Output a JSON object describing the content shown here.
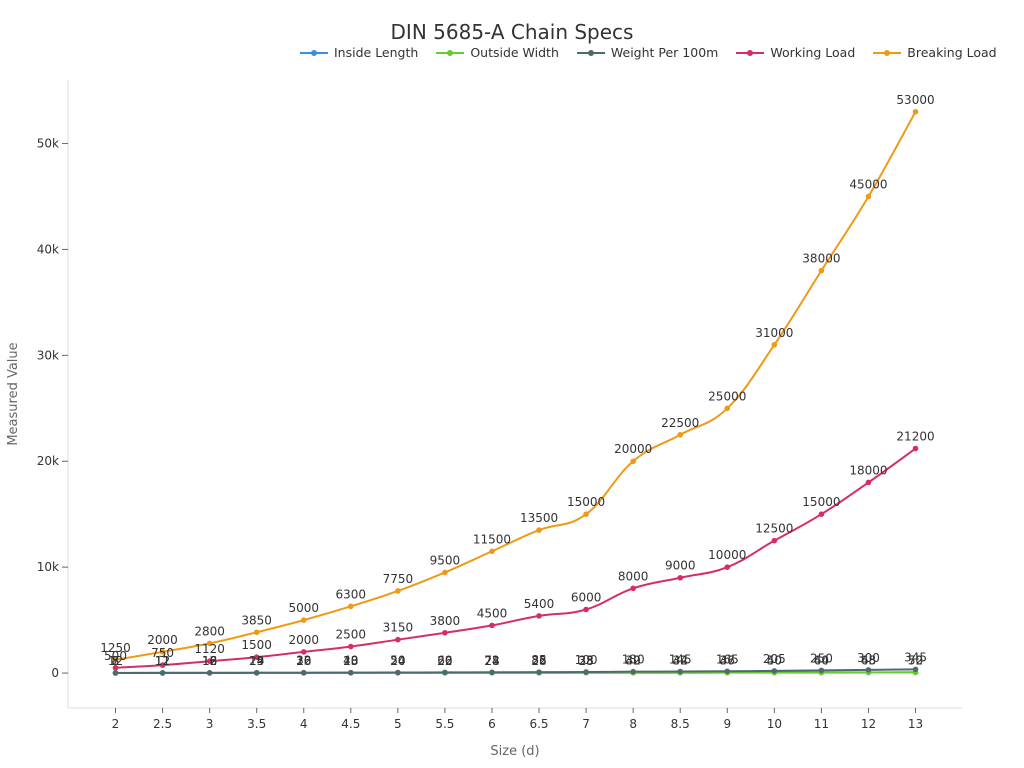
{
  "chart_data": {
    "type": "line",
    "title": "DIN 5685-A Chain Specs",
    "xlabel": "Size (d)",
    "ylabel": "Measured Value",
    "categories": [
      "2",
      "2.5",
      "3",
      "3.5",
      "4",
      "4.5",
      "5",
      "5.5",
      "6",
      "6.5",
      "7",
      "8",
      "8.5",
      "9",
      "10",
      "11",
      "12",
      "13"
    ],
    "ylim": [
      -3300,
      56000
    ],
    "yticks": [
      0,
      10000,
      20000,
      30000,
      40000,
      50000
    ],
    "ytick_labels": [
      "0",
      "10k",
      "20k",
      "30k",
      "40k",
      "50k"
    ],
    "grid": false,
    "legend_position": "top",
    "series": [
      {
        "name": "Inside Length",
        "color": "#3b8fe0",
        "values": [
          12,
          12,
          16,
          19,
          20,
          23,
          24,
          26,
          28,
          32,
          35,
          40,
          42,
          47,
          50,
          60,
          65,
          70
        ]
      },
      {
        "name": "Outside Width",
        "color": "#67cc2f",
        "values": [
          8,
          11,
          12,
          14,
          16,
          18,
          20,
          22,
          24,
          26,
          28,
          32,
          34,
          36,
          40,
          44,
          48,
          52
        ]
      },
      {
        "name": "Weight Per 100m",
        "color": "#4d6a6d",
        "values": [
          7,
          12,
          18,
          25,
          32,
          40,
          50,
          60,
          72,
          85,
          100,
          130,
          145,
          165,
          205,
          250,
          300,
          345
        ]
      },
      {
        "name": "Working Load",
        "color": "#d62d67",
        "values": [
          500,
          750,
          1120,
          1500,
          2000,
          2500,
          3150,
          3800,
          4500,
          5400,
          6000,
          8000,
          9000,
          10000,
          12500,
          15000,
          18000,
          21200
        ]
      },
      {
        "name": "Breaking Load",
        "color": "#ef9a16",
        "values": [
          1250,
          2000,
          2800,
          3850,
          5000,
          6300,
          7750,
          9500,
          11500,
          13500,
          15000,
          20000,
          22500,
          25000,
          31000,
          38000,
          45000,
          53000
        ]
      }
    ],
    "data_labels": {
      "Inside Length": [
        "12",
        "12",
        "16",
        "19",
        "20",
        "23",
        "24",
        "26",
        "28",
        "32",
        "35",
        "40",
        "42",
        "47",
        "50",
        "60",
        "65",
        "70"
      ],
      "Outside Width": [
        "8",
        "11",
        "12",
        "14",
        "16",
        "18",
        "20",
        "22",
        "24",
        "26",
        "28",
        "32",
        "34",
        "36",
        "40",
        "44",
        "48",
        "52"
      ],
      "Weight Per 100m": [
        "7",
        "12",
        "18",
        "25",
        "32",
        "40",
        "50",
        "60",
        "72",
        "85",
        "100",
        "130",
        "145",
        "165",
        "205",
        "250",
        "300",
        "345"
      ],
      "Working Load": [
        "500",
        "750",
        "1120",
        "1500",
        "2000",
        "2500",
        "3150",
        "3800",
        "4500",
        "5400",
        "6000",
        "8000",
        "9000",
        "10000",
        "12500",
        "15000",
        "18000",
        "21200"
      ],
      "Breaking Load": [
        "1250",
        "2000",
        "2800",
        "3850",
        "5000",
        "6300",
        "7750",
        "9500",
        "11500",
        "13500",
        "15000",
        "20000",
        "22500",
        "25000",
        "31000",
        "38000",
        "45000",
        "53000"
      ]
    }
  }
}
